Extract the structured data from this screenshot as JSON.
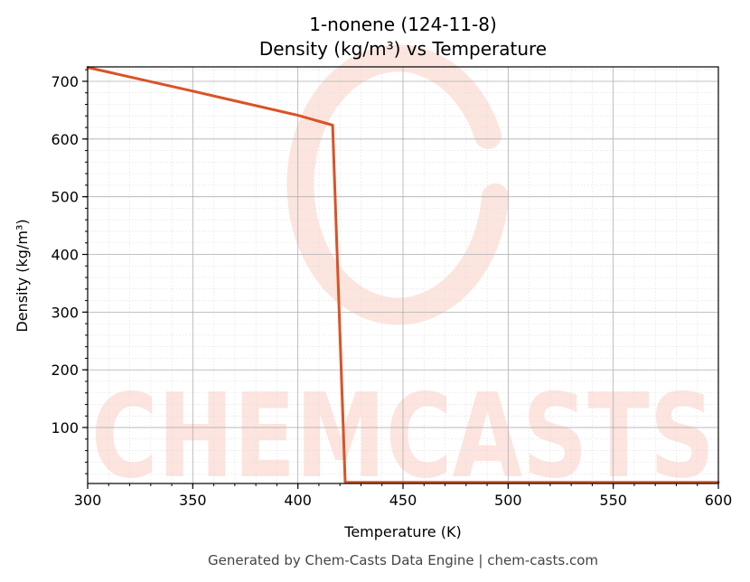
{
  "chart_data": {
    "type": "line",
    "title": "1-nonene (124-11-8)",
    "subtitle": "Density (kg/m³) vs Temperature",
    "xlabel": "Temperature (K)",
    "ylabel": "Density (kg/m³)",
    "xlim": [
      300,
      600
    ],
    "ylim": [
      3,
      725
    ],
    "x_ticks": [
      300,
      350,
      400,
      450,
      500,
      550,
      600
    ],
    "y_ticks": [
      100,
      200,
      300,
      400,
      500,
      600,
      700
    ],
    "grid": true,
    "series": [
      {
        "color": "#d95327",
        "x": [
          300,
          350,
          400,
          416.5,
          422.5,
          450,
          500,
          550,
          600
        ],
        "y": [
          724,
          683,
          641,
          624,
          5,
          5,
          5,
          5,
          5
        ]
      }
    ]
  },
  "watermark": {
    "text": "CHEMCASTS",
    "color": "#fde2dc"
  },
  "footer": "Generated by Chem-Casts Data Engine | chem-casts.com"
}
